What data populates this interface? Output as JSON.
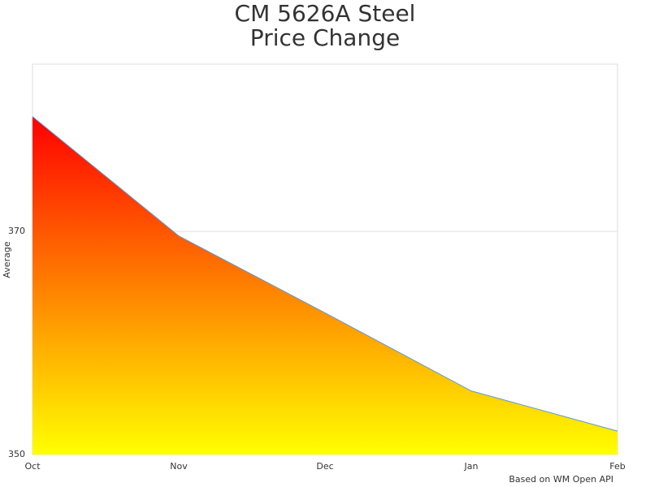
{
  "chart_data": {
    "type": "area",
    "title": [
      "CM 5626A Steel",
      "Price Change"
    ],
    "y_label": "Average",
    "credits": "Based on WM Open API",
    "categories": [
      "Oct",
      "Nov",
      "Dec",
      "Jan",
      "Feb"
    ],
    "values": [
      380.3,
      369.6,
      362.7,
      355.7,
      352.1
    ],
    "line_color": "#5b9bd5",
    "fill_gradient": [
      "#ff0000",
      "#ffff00"
    ],
    "ylim": [
      350,
      385
    ],
    "yticks": [
      350,
      370
    ],
    "grid": true
  }
}
